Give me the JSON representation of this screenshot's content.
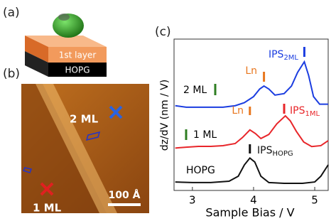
{
  "panels": {
    "a": {
      "label": "(a)",
      "layer": "1st layer",
      "substrate": "HOPG"
    },
    "b": {
      "label": "(b)",
      "region_2ml": "2 ML",
      "region_1ml": "1 ML",
      "scale_bar": "100 Å"
    }
  },
  "chart_data": {
    "type": "line",
    "panel_label": "(c)",
    "x_label": "Sample Bias / V",
    "y_label": "dz/dV  (nm / V)",
    "xlim": [
      2.7,
      5.22
    ],
    "xticks": [
      3,
      4,
      5
    ],
    "ylim": [
      0,
      10
    ],
    "series": [
      {
        "name": "2 ML",
        "color": "#1b3de0",
        "x": [
          2.72,
          2.9,
          3.1,
          3.3,
          3.5,
          3.7,
          3.85,
          4.0,
          4.1,
          4.17,
          4.25,
          4.35,
          4.5,
          4.62,
          4.72,
          4.83,
          4.9,
          4.98,
          5.08,
          5.22
        ],
        "values": [
          5.6,
          5.5,
          5.5,
          5.5,
          5.5,
          5.6,
          5.8,
          6.2,
          6.7,
          6.9,
          6.7,
          6.3,
          6.4,
          6.9,
          7.8,
          8.5,
          7.6,
          6.2,
          5.7,
          5.7
        ]
      },
      {
        "name": "1 ML",
        "color": "#e8262a",
        "x": [
          2.72,
          2.9,
          3.1,
          3.3,
          3.5,
          3.7,
          3.82,
          3.94,
          4.03,
          4.12,
          4.25,
          4.38,
          4.52,
          4.6,
          4.7,
          4.82,
          4.95,
          5.1,
          5.22
        ],
        "values": [
          2.8,
          2.86,
          2.91,
          2.91,
          2.96,
          3.1,
          3.5,
          4.0,
          3.76,
          3.43,
          3.7,
          4.4,
          4.93,
          4.6,
          3.9,
          3.2,
          2.9,
          2.96,
          3.29
        ]
      },
      {
        "name": "HOPG",
        "color": "#111111",
        "x": [
          2.72,
          3.0,
          3.3,
          3.6,
          3.75,
          3.85,
          3.94,
          4.02,
          4.12,
          4.25,
          4.5,
          4.8,
          5.0,
          5.1,
          5.22
        ],
        "values": [
          0.56,
          0.52,
          0.52,
          0.61,
          0.94,
          1.69,
          2.14,
          1.88,
          0.94,
          0.52,
          0.47,
          0.47,
          0.56,
          0.94,
          1.69
        ]
      }
    ],
    "annotations": [
      {
        "text": "IPS",
        "sub": "2ML",
        "x": 4.83,
        "color": "#1b3de0"
      },
      {
        "text": "Ln",
        "x": 4.17,
        "color": "#e8761e"
      },
      {
        "text": "Ln",
        "x": 3.94,
        "color": "#e8761e"
      },
      {
        "text": "IPS",
        "sub": "1ML",
        "x": 4.5,
        "color": "#e8262a"
      },
      {
        "text": "IPS",
        "sub": "HOPG",
        "x": 3.94,
        "color": "#111111"
      }
    ]
  }
}
